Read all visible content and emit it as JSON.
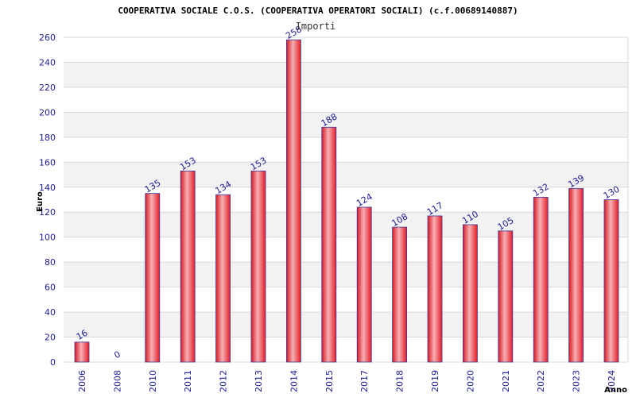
{
  "chart_data": {
    "type": "bar",
    "title": "COOPERATIVA SOCIALE C.O.S. (COOPERATIVA OPERATORI SOCIALI) (c.f.00689140887)",
    "subtitle": "Importi",
    "ylabel": "Euro",
    "xlabel": "Anno",
    "categories": [
      "2006",
      "2008",
      "2010",
      "2011",
      "2012",
      "2013",
      "2014",
      "2015",
      "2017",
      "2018",
      "2019",
      "2020",
      "2021",
      "2022",
      "2023",
      "2024"
    ],
    "values": [
      16,
      0,
      135,
      153,
      134,
      153,
      258,
      188,
      124,
      108,
      117,
      110,
      105,
      132,
      139,
      130
    ],
    "data_labels": [
      "16",
      "0",
      "135",
      "153",
      "134",
      "153",
      "258",
      "188",
      "124",
      "108",
      "117",
      "110",
      "105",
      "132",
      "139",
      "130"
    ],
    "ylim": [
      0,
      260
    ],
    "yticks": [
      "0",
      "20",
      "40",
      "60",
      "80",
      "100",
      "120",
      "140",
      "160",
      "180",
      "200",
      "220",
      "240",
      "260"
    ],
    "grid": true,
    "colors": {
      "bar": "#e8202a",
      "bar_highlight": "#f2a0a4",
      "bar_edge": "#3a3aa0",
      "band": "#f2f2f2",
      "grid": "#d8d8d8",
      "tick_text": "#1a1a9a"
    }
  }
}
